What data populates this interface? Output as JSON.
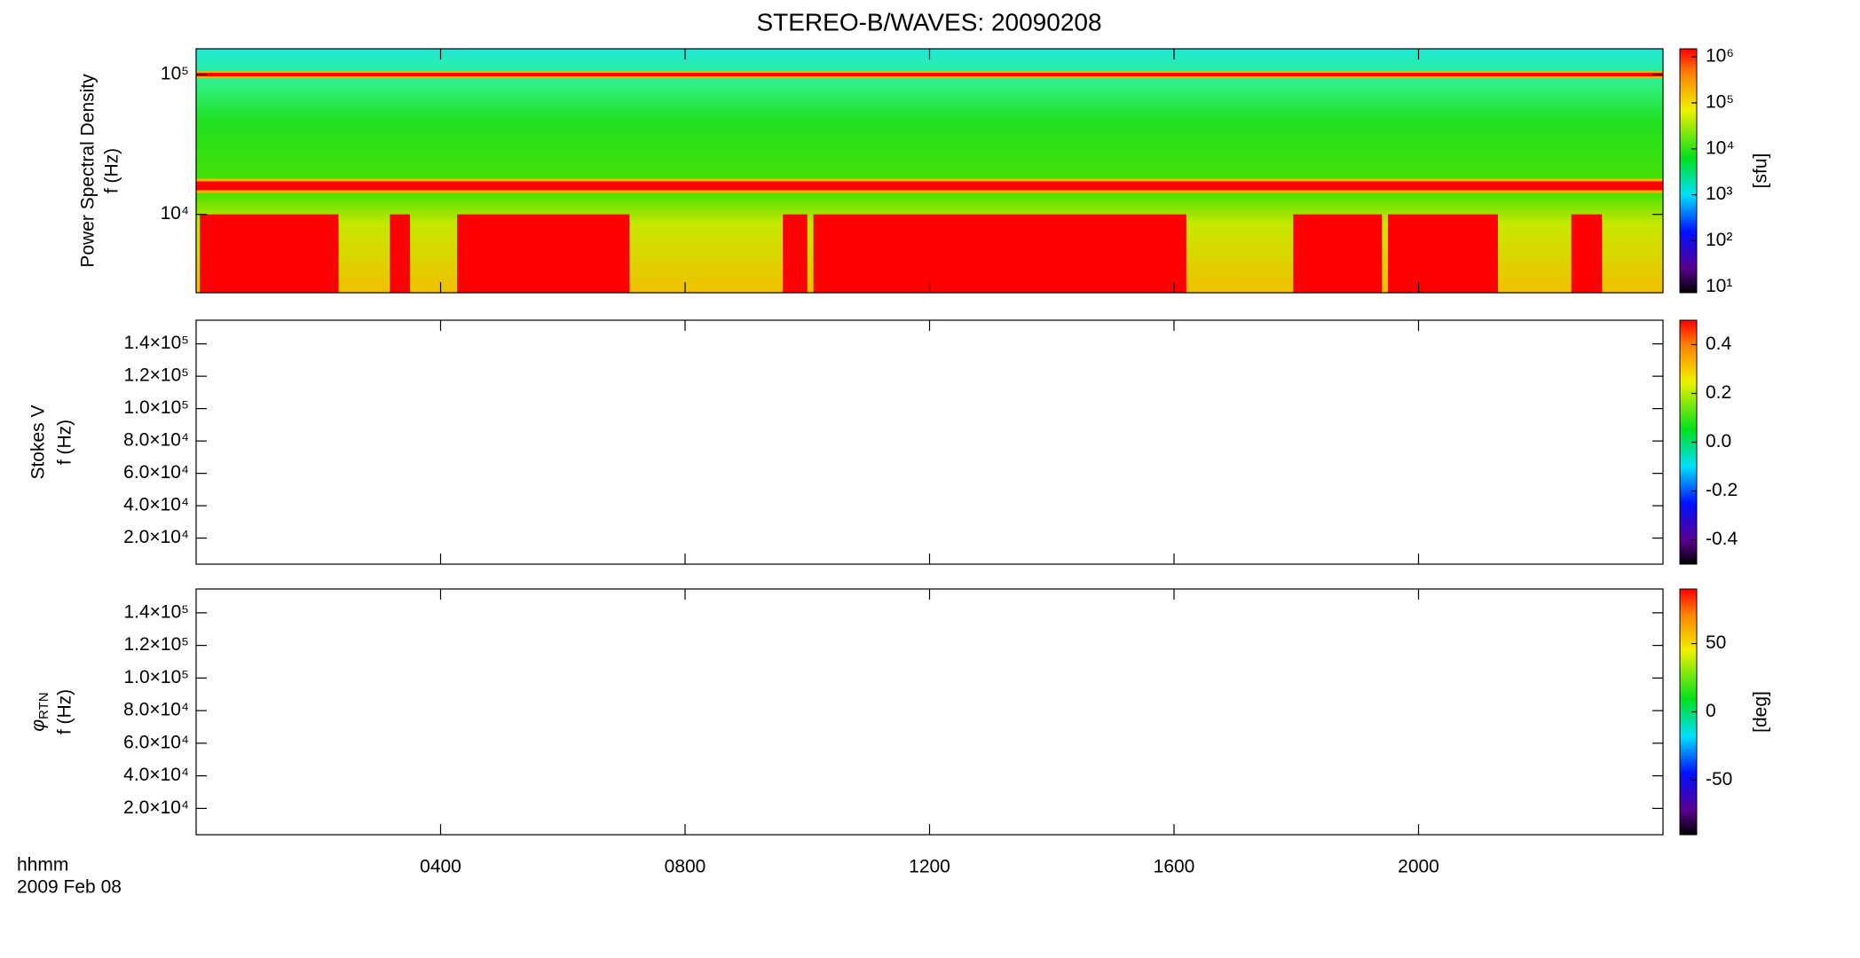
{
  "chart_data": [
    {
      "type": "spectrogram",
      "title": "STEREO-B/WAVES: 20090208",
      "ylabel": "Power Spectral Density",
      "ylabel2": "f (Hz)",
      "ylog": true,
      "ylim": [
        2750,
        153000
      ],
      "yticks": [
        {
          "value": 10000,
          "label": "10⁴"
        },
        {
          "value": 100000,
          "label": "10⁵"
        }
      ],
      "xlim": [
        0,
        24
      ],
      "xticks": [
        {
          "value": 4,
          "label": "0400"
        },
        {
          "value": 8,
          "label": "0800"
        },
        {
          "value": 12,
          "label": "1200"
        },
        {
          "value": 16,
          "label": "1600"
        },
        {
          "value": 20,
          "label": "2000"
        }
      ],
      "xlabel": "hhmm",
      "date": "2009 Feb 08",
      "emission_lines_hz": [
        100000,
        16000
      ],
      "burst_top_hz": 10000,
      "burst_intervals_hours": [
        [
          0.06,
          2.33
        ],
        [
          3.17,
          3.5
        ],
        [
          4.27,
          7.09
        ],
        [
          9.6,
          10.0
        ],
        [
          10.1,
          16.2
        ],
        [
          17.95,
          19.4
        ],
        [
          19.5,
          21.3
        ],
        [
          22.5,
          23.0
        ]
      ],
      "color": "#ff0000",
      "colorbar": {
        "label": "[sfu]",
        "log": true,
        "lim": [
          7.4,
          1500000
        ],
        "ticks": [
          {
            "value": 10,
            "label": "10¹"
          },
          {
            "value": 100,
            "label": "10²"
          },
          {
            "value": 1000,
            "label": "10³"
          },
          {
            "value": 10000,
            "label": "10⁴"
          },
          {
            "value": 100000,
            "label": "10⁵"
          },
          {
            "value": 1000000,
            "label": "10⁶"
          }
        ]
      }
    },
    {
      "type": "spectrogram",
      "ylabel": "Stokes V",
      "ylabel2": "f (Hz)",
      "ylim": [
        3900,
        154600
      ],
      "yticks": [
        {
          "value": 140000,
          "label": "1.4×10⁵"
        },
        {
          "value": 120000,
          "label": "1.2×10⁵"
        },
        {
          "value": 100000,
          "label": "1.0×10⁵"
        },
        {
          "value": 80000,
          "label": "8.0×10⁴"
        },
        {
          "value": 60000,
          "label": "6.0×10⁴"
        },
        {
          "value": 40000,
          "label": "4.0×10⁴"
        },
        {
          "value": 20000,
          "label": "2.0×10⁴"
        }
      ],
      "colorbar": {
        "lim": [
          -0.5,
          0.5
        ],
        "ticks": [
          0.4,
          0.2,
          {
            "value": 0,
            "label": "0.0"
          },
          -0.2,
          -0.4
        ]
      }
    },
    {
      "type": "spectrogram",
      "ylabel": "φ",
      "ylabel_subscript": "RTN",
      "ylabel2": "f (Hz)",
      "ylim": [
        3900,
        154600
      ],
      "yticks": [
        {
          "value": 140000,
          "label": "1.4×10⁵"
        },
        {
          "value": 120000,
          "label": "1.2×10⁵"
        },
        {
          "value": 100000,
          "label": "1.0×10⁵"
        },
        {
          "value": 80000,
          "label": "8.0×10⁴"
        },
        {
          "value": 60000,
          "label": "6.0×10⁴"
        },
        {
          "value": 40000,
          "label": "4.0×10⁴"
        },
        {
          "value": 20000,
          "label": "2.0×10⁴"
        }
      ],
      "colorbar": {
        "label": "[deg]",
        "lim": [
          -90,
          90
        ],
        "ticks": [
          50,
          0,
          -50
        ]
      }
    }
  ]
}
